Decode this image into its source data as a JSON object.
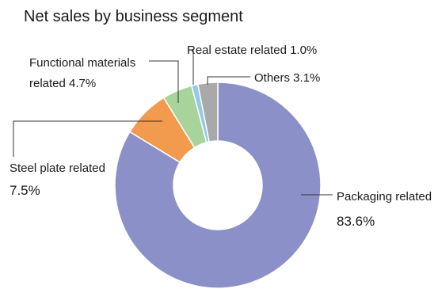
{
  "chart_data": {
    "type": "pie",
    "title": "Net sales by business segment",
    "donut": true,
    "unit": "%",
    "series": [
      {
        "name": "Packaging related",
        "value": 83.6,
        "label_line1": "Packaging related",
        "label_line2": "83.6%",
        "color": "#8b91c8"
      },
      {
        "name": "Steel plate related",
        "value": 7.5,
        "label_line1": "Steel plate related",
        "label_line2": "7.5%",
        "color": "#f29b4f"
      },
      {
        "name": "Functional materials related",
        "value": 4.7,
        "label_line1": "Functional materials",
        "label_line2": "related 4.7%",
        "color": "#a8d39a"
      },
      {
        "name": "Real estate related",
        "value": 1.0,
        "label_line1": "Real estate related 1.0%",
        "label_line2": "",
        "color": "#93c9ea"
      },
      {
        "name": "Others",
        "value": 3.1,
        "label_line1": "Others 3.1%",
        "label_line2": "",
        "color": "#a9a9a9"
      }
    ]
  }
}
